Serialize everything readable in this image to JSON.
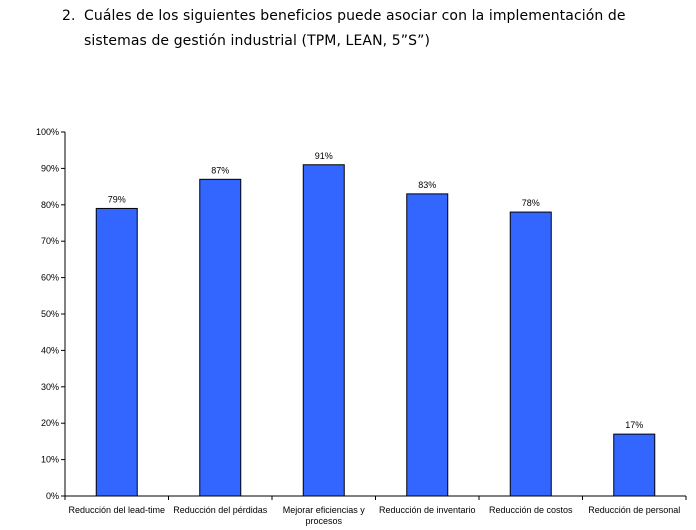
{
  "question": {
    "number": "2.",
    "line1": "Cuáles de los siguientes beneficios puede asociar con la implementación de",
    "line2": "sistemas de gestión industrial (TPM, LEAN, 5”S”)"
  },
  "chart_data": {
    "type": "bar",
    "title": "",
    "xlabel": "",
    "ylabel": "",
    "ylim": [
      0,
      100
    ],
    "ytick_labels": [
      "0%",
      "10%",
      "20%",
      "30%",
      "40%",
      "50%",
      "60%",
      "70%",
      "80%",
      "90%",
      "100%"
    ],
    "categories": [
      [
        "Reducción del lead-time"
      ],
      [
        "Reducción del pérdidas"
      ],
      [
        "Mejorar eficiencias y",
        "procesos"
      ],
      [
        "Reducción de inventario"
      ],
      [
        "Reducción de costos"
      ],
      [
        "Reducción de personal"
      ]
    ],
    "values": [
      79,
      87,
      91,
      83,
      78,
      17
    ],
    "data_labels": [
      "79%",
      "87%",
      "91%",
      "83%",
      "78%",
      "17%"
    ],
    "bar_color": "#3366ff",
    "grid": false,
    "legend": "none"
  }
}
